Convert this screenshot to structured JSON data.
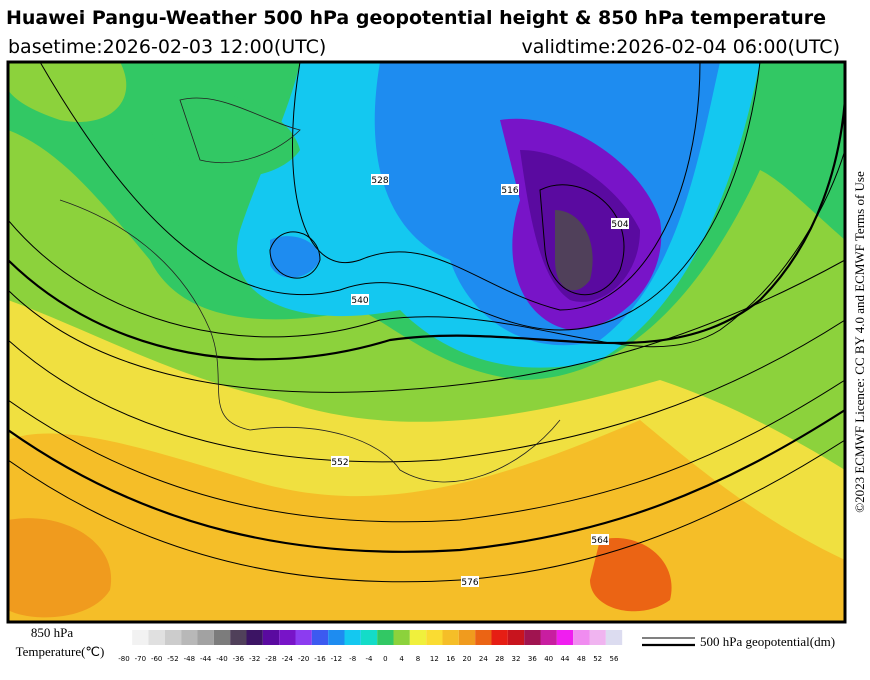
{
  "header": {
    "title": "Huawei Pangu-Weather 500 hPa geopotential height & 850 hPa temperature",
    "basetime": "basetime:2026-02-03 12:00(UTC)",
    "validtime": "validtime:2026-02-04 06:00(UTC)"
  },
  "side_note": "©2023 ECMWF Licence: CC BY 4.0 and ECMWF Terms of Use",
  "map": {
    "contour_labels": [
      "576",
      "564",
      "552",
      "540",
      "528",
      "516",
      "504"
    ]
  },
  "legend": {
    "temperature_label_line1": "850 hPa",
    "temperature_label_line2": "Temperature(℃)",
    "ticks": [
      -80,
      -70,
      -60,
      -52,
      -48,
      -44,
      -40,
      -36,
      -32,
      -28,
      -24,
      -20,
      -16,
      -12,
      -8,
      -4,
      0,
      4,
      8,
      12,
      16,
      20,
      24,
      28,
      32,
      36,
      40,
      44,
      48,
      52,
      56
    ],
    "colors": [
      "#f2f2f2",
      "#e0e0e0",
      "#cccccc",
      "#b8b8b8",
      "#a2a2a2",
      "#7c7c7c",
      "#50405a",
      "#3c1464",
      "#5a0aa0",
      "#7814c8",
      "#8c3cf0",
      "#3c5af0",
      "#1e8cf0",
      "#14c8f0",
      "#14dcc8",
      "#32c864",
      "#8cd23c",
      "#f0f03c",
      "#fadc32",
      "#f5be28",
      "#f09b1e",
      "#eb6414",
      "#e61e14",
      "#c8141e",
      "#a01450",
      "#c81ea0",
      "#f01ef0",
      "#f08cf0",
      "#f0b4f0",
      "#dcdcf0"
    ],
    "contour_label": "500 hPa geopotential(dm)"
  }
}
